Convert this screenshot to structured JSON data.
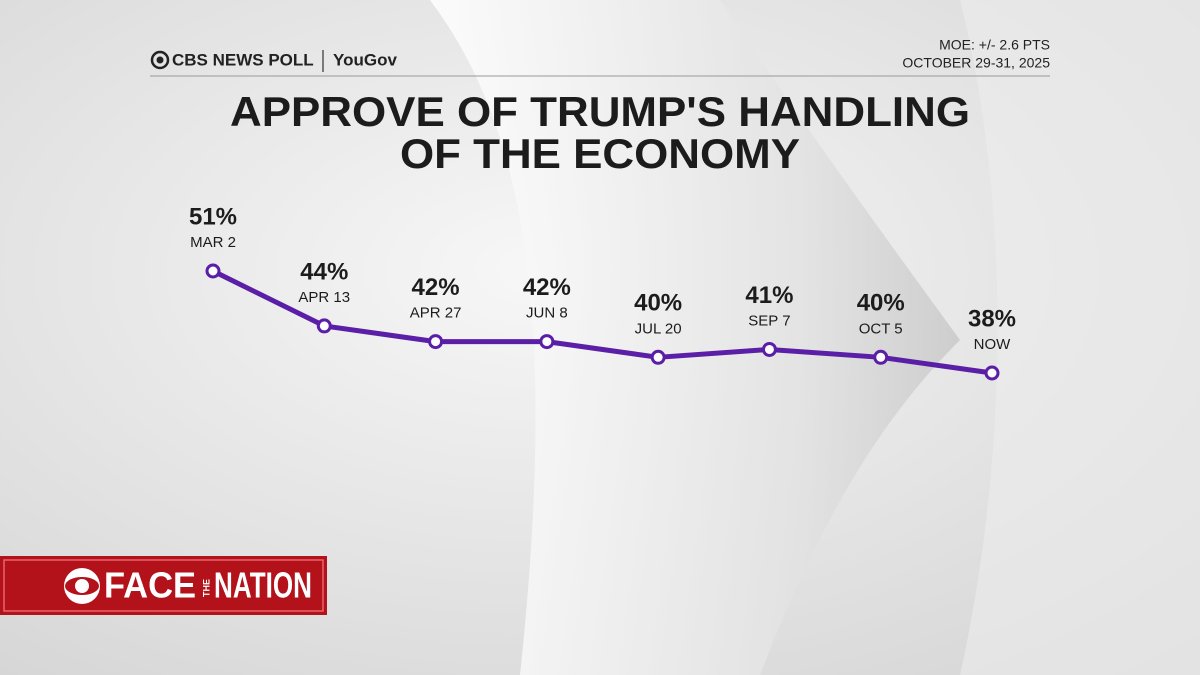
{
  "header": {
    "source": "CBS NEWS POLL",
    "partner": "YouGov",
    "moe": "MOE: +/- 2.6 PTS",
    "dates": "OCTOBER 29-31, 2025"
  },
  "chart_data": {
    "type": "line",
    "title": [
      "APPROVE OF TRUMP'S HANDLING",
      "OF THE ECONOMY"
    ],
    "categories": [
      "MAR 2",
      "APR 13",
      "APR 27",
      "JUN 8",
      "JUL 20",
      "SEP 7",
      "OCT 5",
      "NOW"
    ],
    "values": [
      51,
      44,
      42,
      42,
      40,
      41,
      40,
      38
    ],
    "value_labels": [
      "51%",
      "44%",
      "42%",
      "42%",
      "40%",
      "41%",
      "40%",
      "38%"
    ],
    "color": "#5a1fa6"
  },
  "show_logo": {
    "face": "FACE",
    "the": "THE",
    "nation": "NATION"
  }
}
